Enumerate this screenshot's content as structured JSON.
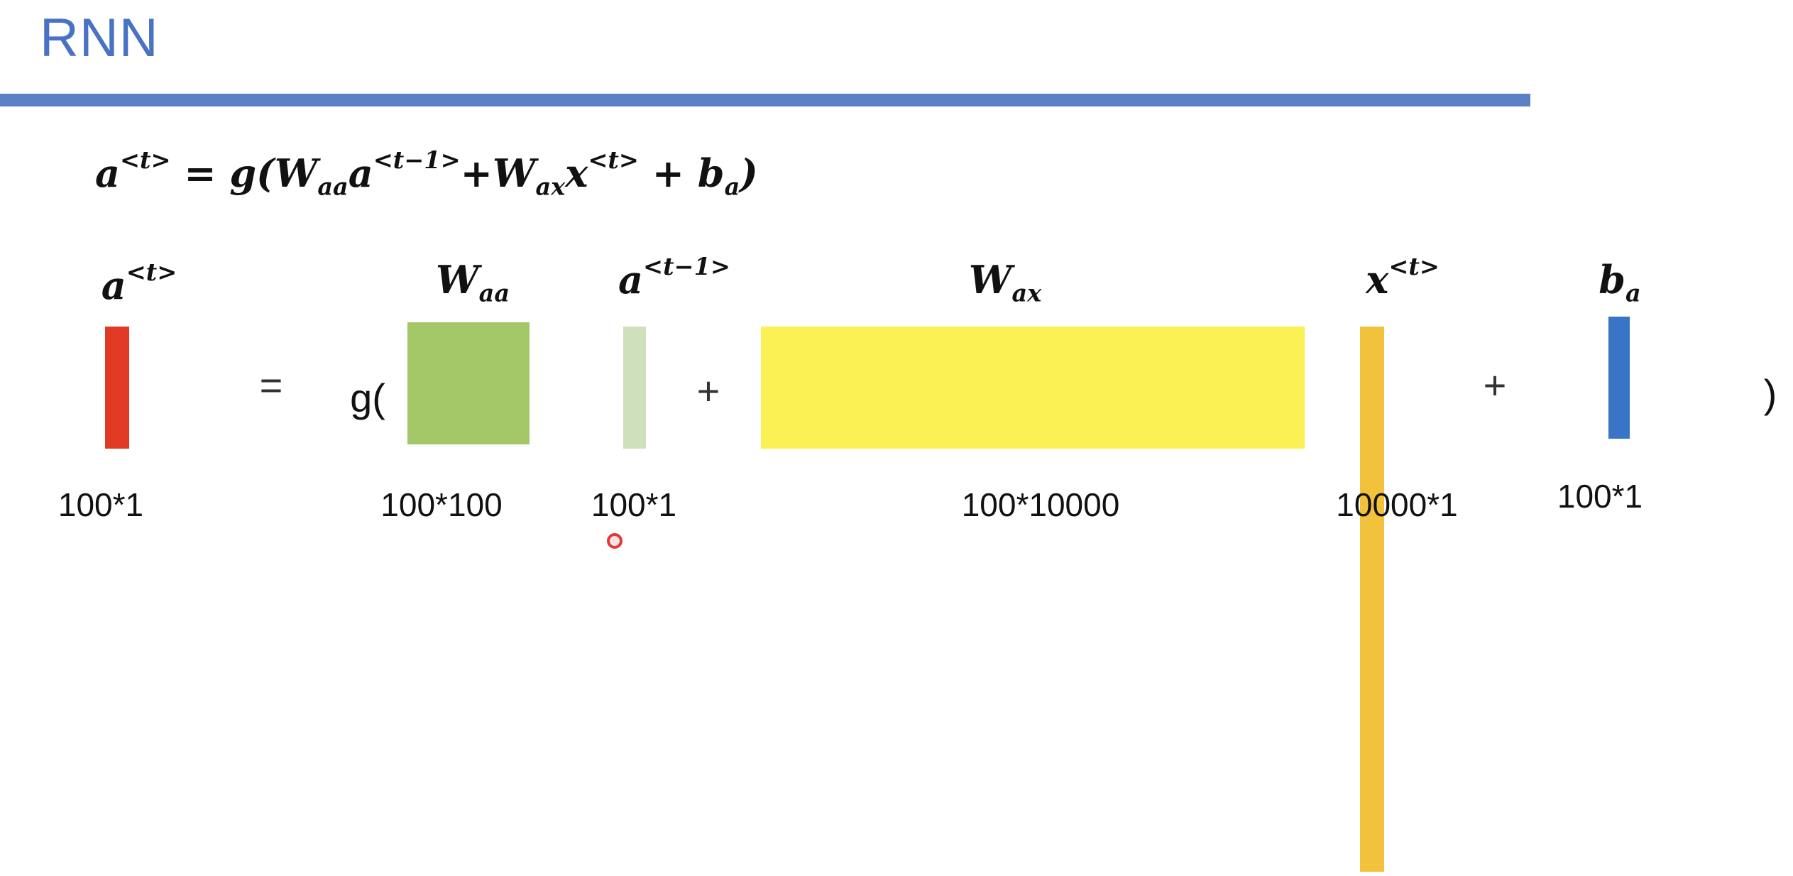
{
  "slide": {
    "title": "RNN"
  },
  "equation": {
    "lhs": "a",
    "lhs_sup": "<t>",
    "eq": " = ",
    "g_open": "g(",
    "w1": "W",
    "w1_sub": "aa",
    "a_prev": "a",
    "a_prev_sup": "<t−1>",
    "plus1": "+",
    "w2": "W",
    "w2_sub": "ax",
    "x": "x",
    "x_sup": "<t>",
    "plus2": " + ",
    "b": "b",
    "b_sub": "a",
    "close": ")"
  },
  "terms": {
    "a_t": {
      "base": "a",
      "sup": "<t>",
      "dim": "100*1",
      "color": "#e03a25"
    },
    "w_aa": {
      "base": "W",
      "sub": "aa",
      "dim": "100*100",
      "color": "#a3c667"
    },
    "a_prev": {
      "base": "a",
      "sup": "<t−1>",
      "dim": "100*1",
      "color": "#cfe0bd"
    },
    "w_ax": {
      "base": "W",
      "sub": "ax",
      "dim": "100*10000",
      "color": "#fbf154"
    },
    "x_t": {
      "base": "x",
      "sup": "<t>",
      "dim": "10000*1",
      "color": "#f2c23c"
    },
    "b_a": {
      "base": "b",
      "sub": "a",
      "dim": "100*1",
      "color": "#3a74c6"
    }
  },
  "operators": {
    "equals": "=",
    "g_open": "g(",
    "plus_a": "+",
    "plus_b": "+",
    "close": ")"
  },
  "colors": {
    "title": "#4a72c4",
    "rule": "#5b80c6"
  }
}
